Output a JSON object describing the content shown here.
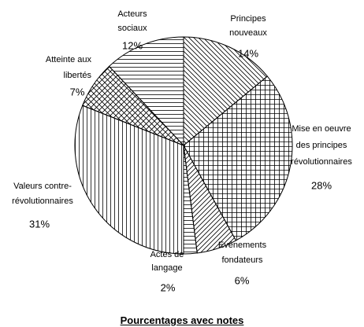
{
  "chart_data": {
    "type": "pie",
    "title": "Pourcentages avec notes",
    "categories": [
      "Principes nouveaux",
      "Mise en oeuvre des principes révolutionnaires",
      "Evénements fondateurs",
      "Actes de langage",
      "Valeurs contre-révolutionnaires",
      "Atteinte aux libertés",
      "Acteurs sociaux"
    ],
    "values": [
      14,
      28,
      6,
      2,
      31,
      7,
      12
    ],
    "value_labels": [
      "14%",
      "28%",
      "6%",
      "2%",
      "31%",
      "7%",
      "12%"
    ],
    "color": "#000000"
  }
}
